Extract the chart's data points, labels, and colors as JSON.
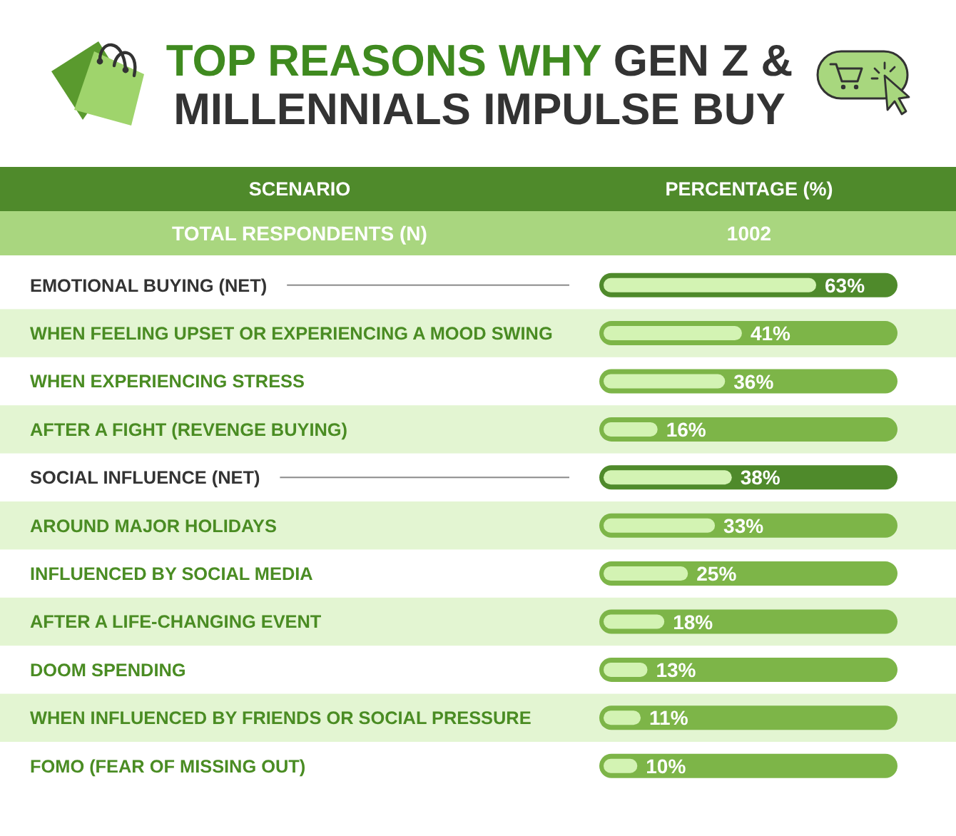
{
  "chart_data": {
    "type": "bar",
    "orientation": "horizontal",
    "stacked": true,
    "tick_labels": "y",
    "title": "TOP REASONS WHY GEN Z & MILLENNIALS IMPULSE BUY",
    "ylabel": "SCENARIO",
    "xlabel": "PERCENTAGE (%)",
    "annotations": [
      "TOTAL RESPONDENTS (N)",
      "1002"
    ],
    "categories": [
      "EMOTIONAL BUYING (NET)",
      "WHEN FEELING UPSET OR EXPERIENCING A MOOD SWING",
      "WHEN EXPERIENCING STRESS",
      "AFTER A FIGHT (REVENGE BUYING)",
      "SOCIAL INFLUENCE (NET)",
      "AROUND MAJOR HOLIDAYS",
      "INFLUENCED BY SOCIAL MEDIA",
      "AFTER A LIFE-CHANGING EVENT",
      "DOOM SPENDING",
      "WHEN INFLUENCED BY FRIENDS OR SOCIAL PRESSURE",
      "FOMO (FEAR OF MISSING OUT)"
    ],
    "series": [
      {
        "color": "#d3f3b3",
        "values": [
          63,
          null,
          null,
          null,
          38,
          null,
          null,
          null,
          null,
          null,
          null
        ],
        "value_labels": [
          "63%",
          null,
          null,
          null,
          "38%",
          null,
          null,
          null,
          null,
          null,
          null
        ]
      },
      {
        "color": "#d3f3b3",
        "values": [
          null,
          41,
          36,
          16,
          null,
          33,
          25,
          18,
          13,
          11,
          10
        ],
        "value_labels": [
          null,
          "41%",
          "36%",
          "16%",
          null,
          "33%",
          "25%",
          "18%",
          "13%",
          "11%",
          "10%"
        ]
      }
    ]
  }
}
